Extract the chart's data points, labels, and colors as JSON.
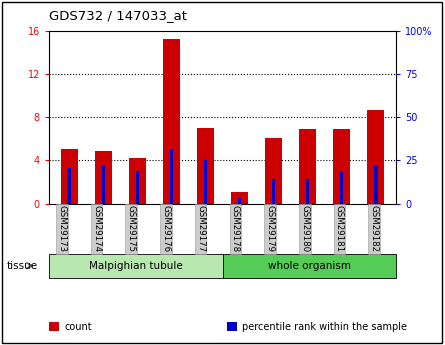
{
  "title": "GDS732 / 147033_at",
  "samples": [
    "GSM29173",
    "GSM29174",
    "GSM29175",
    "GSM29176",
    "GSM29177",
    "GSM29178",
    "GSM29179",
    "GSM29180",
    "GSM29181",
    "GSM29182"
  ],
  "count_values": [
    5.1,
    4.9,
    4.2,
    15.3,
    7.0,
    1.1,
    6.1,
    6.9,
    6.9,
    8.7
  ],
  "percentile_values": [
    20.5,
    21.5,
    19.0,
    31.5,
    25.5,
    3.5,
    14.0,
    14.5,
    18.5,
    21.5
  ],
  "left_ylim": [
    0,
    16
  ],
  "right_ylim": [
    0,
    100
  ],
  "left_yticks": [
    0,
    4,
    8,
    12,
    16
  ],
  "right_yticks": [
    0,
    25,
    50,
    75,
    100
  ],
  "right_yticklabels": [
    "0",
    "25",
    "50",
    "75",
    "100%"
  ],
  "bar_color": "#cc0000",
  "percentile_color": "#0000cc",
  "tissue_groups": [
    {
      "label": "Malpighian tubule",
      "start": 0,
      "end": 5,
      "color": "#b8e8b0"
    },
    {
      "label": "whole organism",
      "start": 5,
      "end": 10,
      "color": "#55cc55"
    }
  ],
  "legend_items": [
    {
      "label": "count",
      "color": "#cc0000"
    },
    {
      "label": "percentile rank within the sample",
      "color": "#0000cc"
    }
  ],
  "tissue_label": "tissue",
  "bg_color": "#ffffff",
  "tick_label_bg": "#cccccc",
  "bar_width": 0.5
}
